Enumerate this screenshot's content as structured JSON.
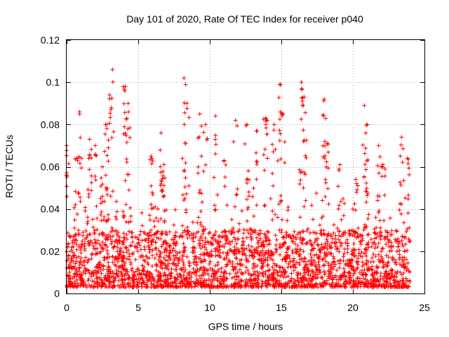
{
  "chart_data": {
    "type": "scatter",
    "title": "Day 101 of 2020, Rate Of TEC Index for receiver p040",
    "xlabel": "GPS time / hours",
    "ylabel": "ROTI / TECUs",
    "xlim": [
      0,
      25
    ],
    "ylim": [
      0,
      0.12
    ],
    "xticks": [
      0,
      5,
      10,
      15,
      20,
      25
    ],
    "xtick_labels": [
      "0",
      "5",
      "10",
      "15",
      "20",
      "25"
    ],
    "yticks": [
      0,
      0.02,
      0.04,
      0.06,
      0.08,
      0.1,
      0.12
    ],
    "ytick_labels": [
      "0",
      "0.02",
      "0.04",
      "0.06",
      "0.08",
      "0.1",
      "0.12"
    ],
    "grid": true,
    "marker": "+",
    "series_color": "#ff0000",
    "x_coverage": [
      0,
      24
    ],
    "dense_band": [
      0.003,
      0.03
    ],
    "peaks": [
      {
        "x": 0.0,
        "y": 0.07
      },
      {
        "x": 0.7,
        "y": 0.064
      },
      {
        "x": 0.9,
        "y": 0.086
      },
      {
        "x": 1.6,
        "y": 0.073
      },
      {
        "x": 2.0,
        "y": 0.07
      },
      {
        "x": 2.5,
        "y": 0.06
      },
      {
        "x": 2.8,
        "y": 0.08
      },
      {
        "x": 3.0,
        "y": 0.094
      },
      {
        "x": 3.2,
        "y": 0.106
      },
      {
        "x": 4.1,
        "y": 0.098
      },
      {
        "x": 4.3,
        "y": 0.09
      },
      {
        "x": 5.9,
        "y": 0.065
      },
      {
        "x": 6.6,
        "y": 0.076
      },
      {
        "x": 6.8,
        "y": 0.061
      },
      {
        "x": 8.2,
        "y": 0.102
      },
      {
        "x": 8.4,
        "y": 0.09
      },
      {
        "x": 9.3,
        "y": 0.085
      },
      {
        "x": 9.7,
        "y": 0.08
      },
      {
        "x": 10.4,
        "y": 0.084
      },
      {
        "x": 11.0,
        "y": 0.063
      },
      {
        "x": 11.8,
        "y": 0.082
      },
      {
        "x": 12.6,
        "y": 0.08
      },
      {
        "x": 13.3,
        "y": 0.077
      },
      {
        "x": 13.9,
        "y": 0.083
      },
      {
        "x": 14.5,
        "y": 0.08
      },
      {
        "x": 14.9,
        "y": 0.099
      },
      {
        "x": 15.1,
        "y": 0.085
      },
      {
        "x": 16.4,
        "y": 0.1
      },
      {
        "x": 16.6,
        "y": 0.093
      },
      {
        "x": 18.0,
        "y": 0.092
      },
      {
        "x": 18.2,
        "y": 0.071
      },
      {
        "x": 19.1,
        "y": 0.061
      },
      {
        "x": 20.2,
        "y": 0.054
      },
      {
        "x": 20.8,
        "y": 0.089
      },
      {
        "x": 21.0,
        "y": 0.08
      },
      {
        "x": 21.8,
        "y": 0.07
      },
      {
        "x": 22.1,
        "y": 0.061
      },
      {
        "x": 23.4,
        "y": 0.074
      },
      {
        "x": 23.8,
        "y": 0.064
      }
    ]
  }
}
